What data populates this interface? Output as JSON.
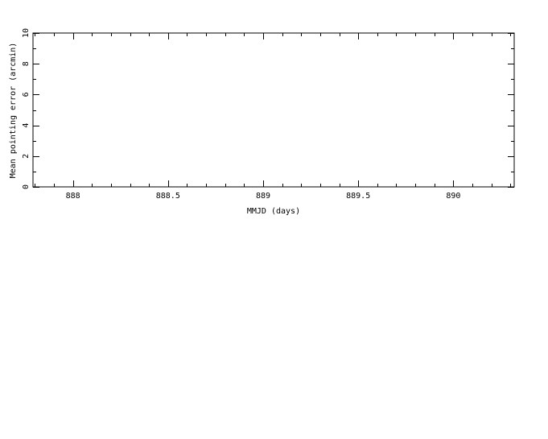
{
  "chart_data": {
    "type": "scatter",
    "title": "",
    "xlabel": "MMJD (days)",
    "ylabel": "Mean pointing error (arcmin)",
    "xlim": [
      887.79,
      890.32
    ],
    "ylim": [
      0,
      10
    ],
    "x_ticks": [
      888,
      888.5,
      889,
      889.5,
      890
    ],
    "x_tick_labels": [
      "888",
      "888.5",
      "889",
      "889.5",
      "890"
    ],
    "y_ticks": [
      0,
      2,
      4,
      6,
      8,
      10
    ],
    "y_tick_labels": [
      "0",
      "2",
      "4",
      "6",
      "8",
      "10"
    ],
    "x_minor_step": 0.1,
    "y_minor_step": 1,
    "grid": false,
    "series": [
      {
        "x": [],
        "y": []
      }
    ],
    "colors": {
      "axes": "#000000",
      "background": "#ffffff"
    }
  }
}
